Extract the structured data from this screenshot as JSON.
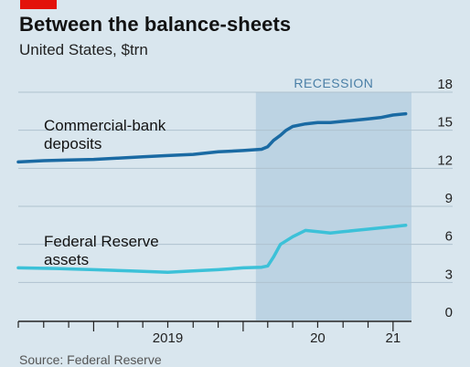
{
  "title": "Between the balance-sheets",
  "subtitle": "United States, $trn",
  "source": "Source: Federal Reserve",
  "colors": {
    "background": "#d9e6ee",
    "recession_band": "#bcd3e3",
    "recession_label": "#4a7fa6",
    "deposits_line": "#1a6aa3",
    "fed_line": "#3cc1d8",
    "grid": "#aec2cf",
    "axis": "#222222",
    "brand": "#e3120b"
  },
  "chart_data": {
    "type": "line",
    "y_axis": {
      "min": 0,
      "max": 18,
      "ticks": [
        0,
        3,
        6,
        9,
        12,
        15,
        18
      ],
      "position": "right"
    },
    "x_axis": {
      "min": "2018-07-01",
      "max": "2021-02-15",
      "tick_labels": [
        {
          "label": "2019",
          "at": "2019-07-01"
        },
        {
          "label": "20",
          "at": "2020-07-01"
        },
        {
          "label": "21",
          "at": "2021-01-01"
        }
      ]
    },
    "grid": true,
    "annotations": [
      {
        "type": "shaded_region",
        "label": "RECESSION",
        "from": "2020-02-01",
        "to": "2021-02-15"
      }
    ],
    "series": [
      {
        "name": "Commercial-bank deposits",
        "label_lines": [
          "Commercial-bank",
          "deposits"
        ],
        "points": [
          [
            "2018-07-01",
            12.5
          ],
          [
            "2018-09-01",
            12.6
          ],
          [
            "2018-11-01",
            12.65
          ],
          [
            "2019-01-01",
            12.7
          ],
          [
            "2019-03-01",
            12.8
          ],
          [
            "2019-05-01",
            12.9
          ],
          [
            "2019-07-01",
            13.0
          ],
          [
            "2019-09-01",
            13.1
          ],
          [
            "2019-11-01",
            13.3
          ],
          [
            "2020-01-01",
            13.4
          ],
          [
            "2020-02-15",
            13.5
          ],
          [
            "2020-03-01",
            13.7
          ],
          [
            "2020-03-15",
            14.2
          ],
          [
            "2020-04-01",
            14.6
          ],
          [
            "2020-04-15",
            15.0
          ],
          [
            "2020-05-01",
            15.3
          ],
          [
            "2020-06-01",
            15.5
          ],
          [
            "2020-07-01",
            15.6
          ],
          [
            "2020-08-01",
            15.6
          ],
          [
            "2020-09-01",
            15.7
          ],
          [
            "2020-10-01",
            15.8
          ],
          [
            "2020-11-01",
            15.9
          ],
          [
            "2020-12-01",
            16.0
          ],
          [
            "2021-01-01",
            16.2
          ],
          [
            "2021-02-01",
            16.3
          ]
        ]
      },
      {
        "name": "Federal Reserve assets",
        "label_lines": [
          "Federal Reserve",
          "assets"
        ],
        "points": [
          [
            "2018-07-01",
            4.15
          ],
          [
            "2018-10-01",
            4.1
          ],
          [
            "2019-01-01",
            4.0
          ],
          [
            "2019-04-01",
            3.9
          ],
          [
            "2019-07-01",
            3.8
          ],
          [
            "2019-09-01",
            3.9
          ],
          [
            "2019-11-01",
            4.0
          ],
          [
            "2020-01-01",
            4.15
          ],
          [
            "2020-02-15",
            4.2
          ],
          [
            "2020-03-01",
            4.3
          ],
          [
            "2020-03-15",
            5.0
          ],
          [
            "2020-04-01",
            6.0
          ],
          [
            "2020-05-01",
            6.6
          ],
          [
            "2020-06-01",
            7.1
          ],
          [
            "2020-07-01",
            7.0
          ],
          [
            "2020-08-01",
            6.9
          ],
          [
            "2020-09-01",
            7.0
          ],
          [
            "2020-10-01",
            7.1
          ],
          [
            "2020-11-01",
            7.2
          ],
          [
            "2020-12-01",
            7.3
          ],
          [
            "2021-01-01",
            7.4
          ],
          [
            "2021-02-01",
            7.5
          ]
        ]
      }
    ]
  }
}
